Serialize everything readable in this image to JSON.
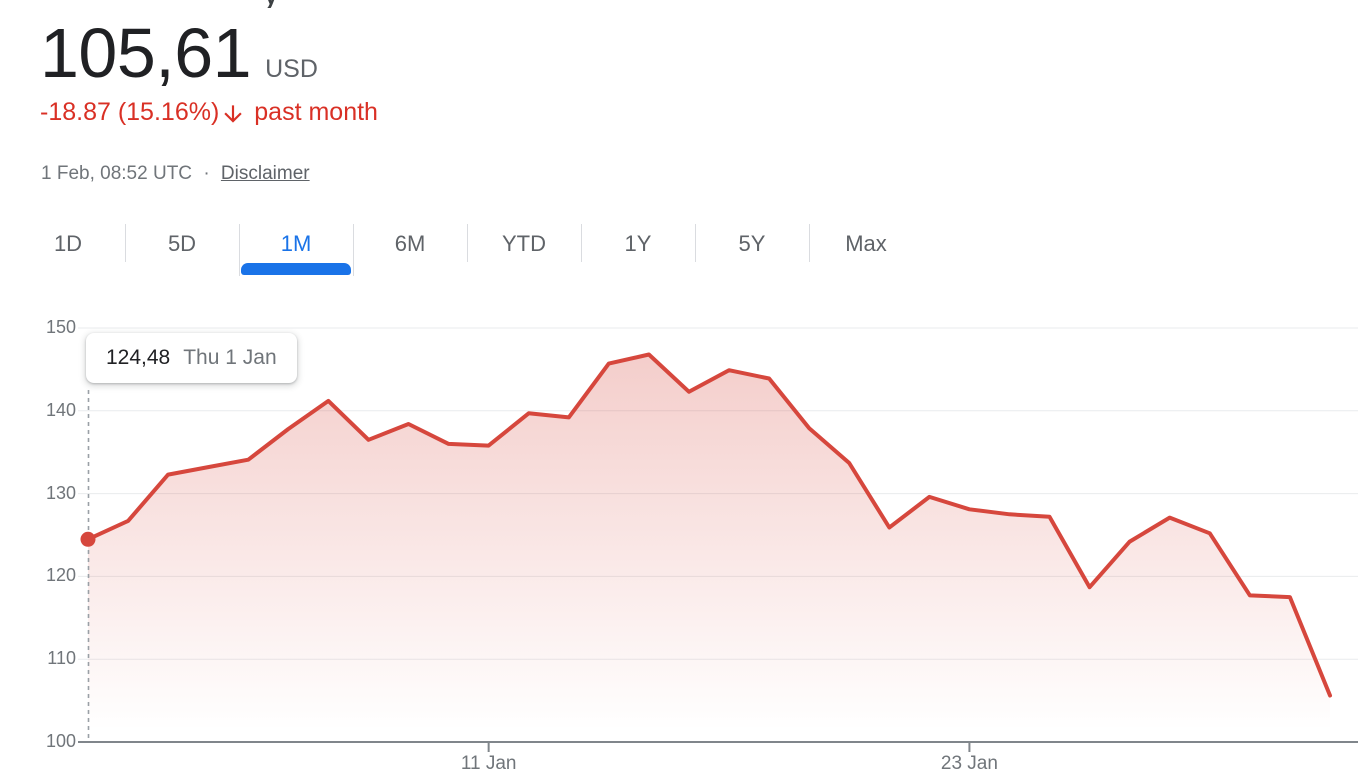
{
  "header": {
    "cropped_title_fragment": "y",
    "price": "105,61",
    "currency": "USD",
    "change_text": "-18.87 (15.16%)",
    "change_direction": "down",
    "change_period": "past month",
    "change_color": "#d93025",
    "timestamp_line": "1 Feb, 08:52 UTC",
    "separator": "·",
    "disclaimer_label": "Disclaimer"
  },
  "range_tabs": {
    "active_color": "#1a73e8",
    "items": [
      {
        "label": "1D",
        "active": false
      },
      {
        "label": "5D",
        "active": false
      },
      {
        "label": "1M",
        "active": true
      },
      {
        "label": "6M",
        "active": false
      },
      {
        "label": "YTD",
        "active": false
      },
      {
        "label": "1Y",
        "active": false
      },
      {
        "label": "5Y",
        "active": false
      },
      {
        "label": "Max",
        "active": false
      }
    ]
  },
  "tooltip": {
    "value": "124,48",
    "date": "Thu 1 Jan"
  },
  "chart_data": {
    "type": "area",
    "title": "",
    "xlabel": "",
    "ylabel": "USD",
    "grid": true,
    "line_color": "#d6473d",
    "fill": "red gradient fading downward",
    "ylim": [
      100,
      150
    ],
    "yticks": [
      150,
      140,
      130,
      120,
      110,
      100
    ],
    "xticks": [
      {
        "label": "11 Jan",
        "index": 10
      },
      {
        "label": "23 Jan",
        "index": 22
      }
    ],
    "x": [
      "1 Jan",
      "2 Jan",
      "3 Jan",
      "4 Jan",
      "5 Jan",
      "6 Jan",
      "7 Jan",
      "8 Jan",
      "9 Jan",
      "10 Jan",
      "11 Jan",
      "12 Jan",
      "13 Jan",
      "14 Jan",
      "15 Jan",
      "16 Jan",
      "17 Jan",
      "18 Jan",
      "19 Jan",
      "20 Jan",
      "21 Jan",
      "22 Jan",
      "23 Jan",
      "24 Jan",
      "25 Jan",
      "26 Jan",
      "27 Jan",
      "28 Jan",
      "29 Jan",
      "30 Jan",
      "31 Jan",
      "1 Feb"
    ],
    "values": [
      124.48,
      126.7,
      132.3,
      133.2,
      134.1,
      137.8,
      141.2,
      136.5,
      138.4,
      136.0,
      135.8,
      139.7,
      139.2,
      145.7,
      146.8,
      142.3,
      144.9,
      143.9,
      137.9,
      133.7,
      125.9,
      129.6,
      128.1,
      127.5,
      127.2,
      118.7,
      124.2,
      127.1,
      125.2,
      117.7,
      117.5,
      105.61
    ],
    "marker": {
      "index": 0,
      "value": 124.48
    },
    "cursor_line_index": 0
  }
}
